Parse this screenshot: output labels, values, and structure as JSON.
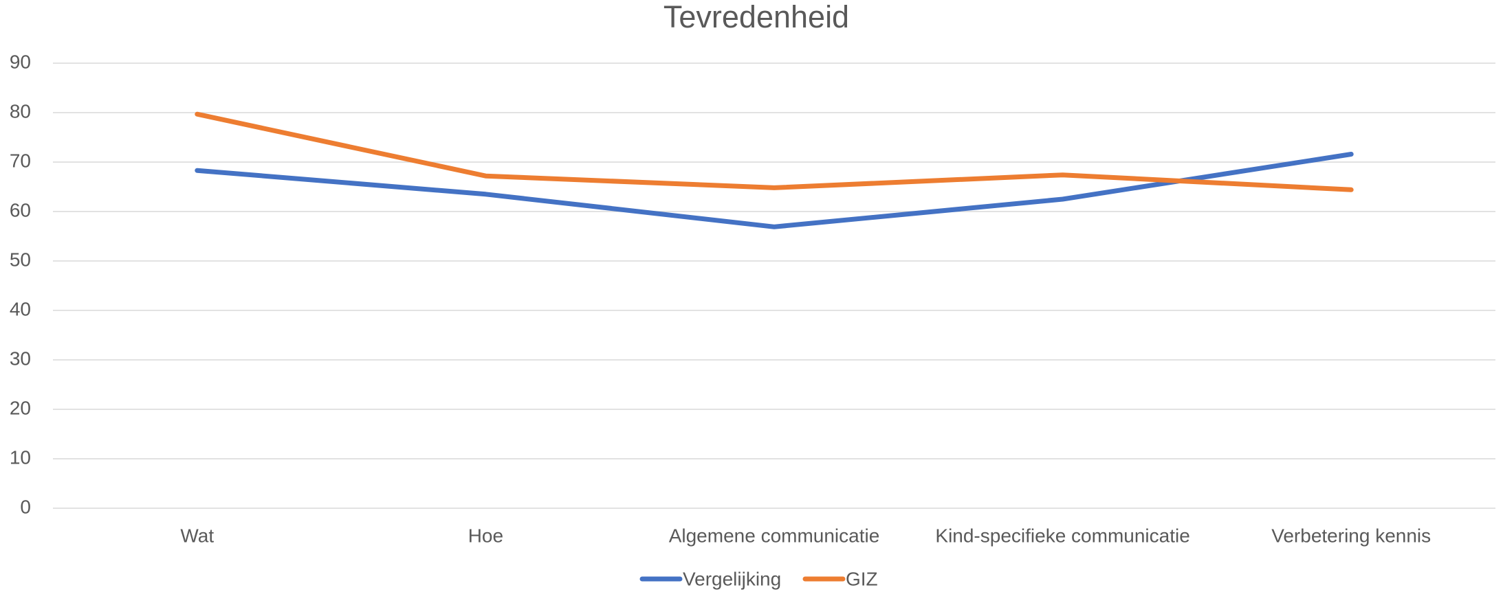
{
  "chart_data": {
    "type": "line",
    "title": "Tevredenheid",
    "categories": [
      "Wat",
      "Hoe",
      "Algemene communicatie",
      "Kind-specifieke communicatie",
      "Verbetering kennis"
    ],
    "series": [
      {
        "name": "Vergelijking",
        "color": "#4472c4",
        "values": [
          68.3,
          63.5,
          56.9,
          62.5,
          71.6
        ]
      },
      {
        "name": "GIZ",
        "color": "#ed7d31",
        "values": [
          79.7,
          67.2,
          64.8,
          67.4,
          64.4
        ]
      }
    ],
    "ylim": [
      0,
      90
    ],
    "yticks": [
      0,
      10,
      20,
      30,
      40,
      50,
      60,
      70,
      80,
      90
    ],
    "grid": true,
    "legend": "bottom"
  }
}
